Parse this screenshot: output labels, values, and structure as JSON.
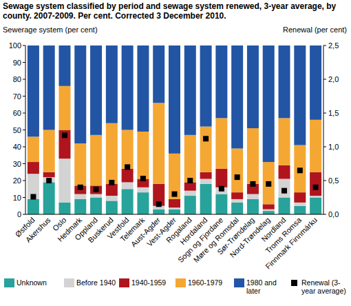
{
  "chart_data": {
    "type": "bar",
    "title": "Sewage system classified by period and sewage system renewed, 3-year average, by county. 2007-2009. Per cent. Corrected 3 December 2010.",
    "y_label": "Sewerage system (per cent)",
    "y2_label": "Renewal (per cent)",
    "stacked": true,
    "legend": "bottom",
    "grid": false,
    "categories": [
      "Østfold",
      "Akershus",
      "Oslo",
      "Hedmark",
      "Oppland",
      "Buskerud",
      "Vestfold",
      "Telemark",
      "Aust-Agder",
      "Vest-Agder",
      "Rogaland",
      "Hordaland",
      "Sogn og Fjordane",
      "Møre og Romsdal",
      "Sør-Trøndelag",
      "Nord-Trøndelag",
      "Nordland",
      "Troms Romsa",
      "Finnmark Finnmárku"
    ],
    "ylim": [
      0,
      100
    ],
    "yticks": [
      0,
      10,
      20,
      30,
      40,
      50,
      60,
      70,
      80,
      90,
      100
    ],
    "y2lim": [
      0,
      2.5
    ],
    "y2ticks": [
      {
        "value": 0,
        "label": "0,0"
      },
      {
        "value": 0.5,
        "label": "0,5"
      },
      {
        "value": 1,
        "label": "1,0"
      },
      {
        "value": 1.5,
        "label": "1,5"
      },
      {
        "value": 2,
        "label": "2,0"
      },
      {
        "value": 2.5,
        "label": "2,5"
      }
    ],
    "series": [
      {
        "name": "Unknown",
        "color": "#27a39b",
        "values": [
          9,
          19,
          7,
          9,
          10,
          8,
          15,
          13,
          3,
          3,
          11,
          18,
          12,
          7,
          9,
          2,
          10,
          5,
          10
        ]
      },
      {
        "name": "Before 1940",
        "color": "#d3d3d3",
        "values": [
          15,
          3,
          26,
          3,
          2,
          3,
          4,
          3,
          2,
          1,
          3,
          3,
          4,
          2,
          3,
          1,
          11,
          2,
          1
        ]
      },
      {
        "name": "1940-1959",
        "color": "#b0151e",
        "values": [
          7,
          3,
          17,
          5,
          5,
          7,
          8,
          5,
          13,
          5,
          5,
          4,
          11,
          4,
          6,
          3,
          8,
          6,
          14
        ]
      },
      {
        "name": "1960-1979",
        "color": "#f5a733",
        "values": [
          15,
          25,
          26,
          25,
          30,
          36,
          23,
          28,
          48,
          27,
          28,
          27,
          30,
          26,
          33,
          25,
          28,
          28,
          31
        ]
      },
      {
        "name": "1980 and later",
        "color": "#2355a5",
        "values": [
          54,
          50,
          24,
          58,
          53,
          46,
          50,
          51,
          34,
          64,
          53,
          48,
          43,
          61,
          49,
          69,
          43,
          59,
          44
        ]
      },
      {
        "name": "Renewal (3-year average)",
        "type": "scatter",
        "axis": "y2",
        "marker": "square",
        "color": "#000000",
        "values": [
          0.26,
          0.5,
          1.17,
          0.4,
          0.37,
          0.47,
          0.7,
          0.53,
          0.15,
          0.3,
          0.5,
          1.12,
          0.38,
          0.55,
          0.45,
          0.45,
          0.35,
          0.65,
          0.4
        ]
      }
    ]
  }
}
